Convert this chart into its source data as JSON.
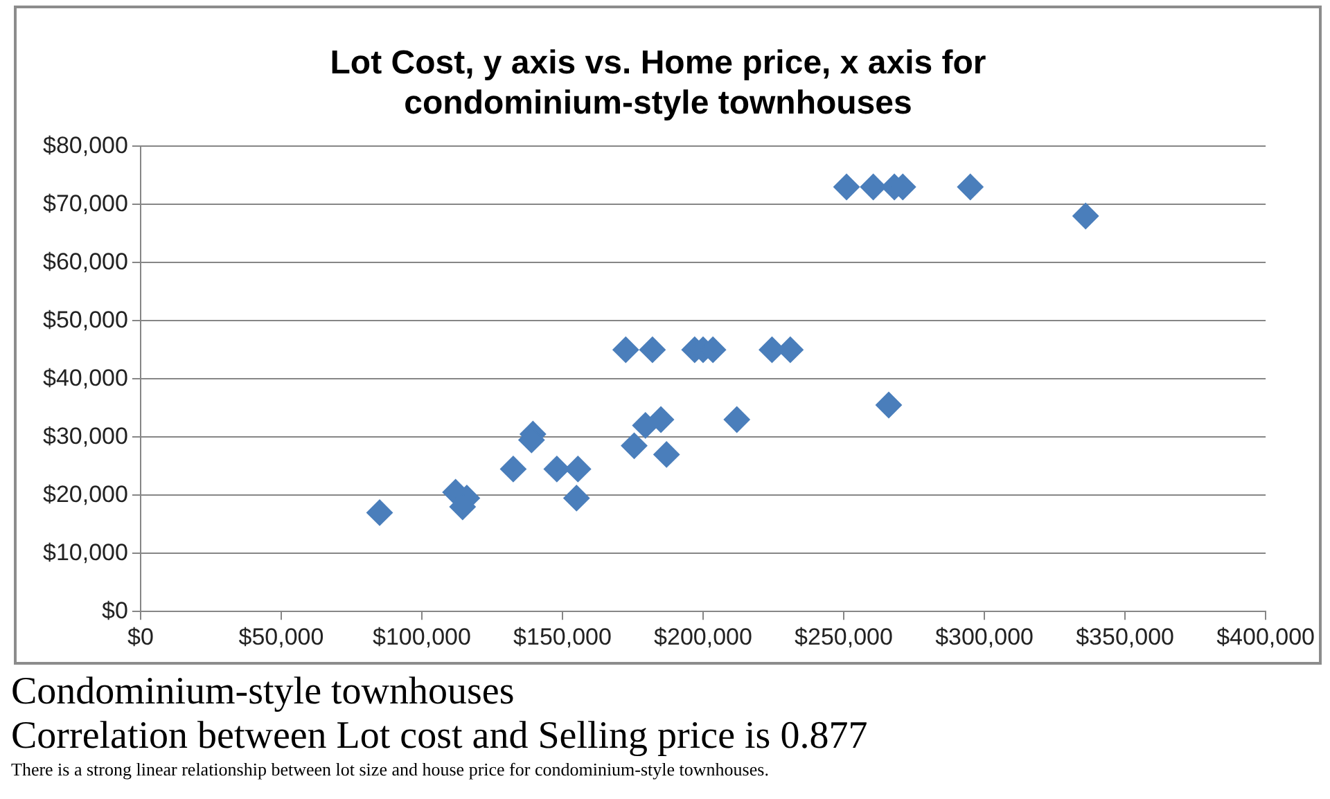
{
  "chart_data": {
    "type": "scatter",
    "title": "Lot Cost, y axis vs. Home price, x axis for\ncondominium-style townhouses",
    "x": [
      85000,
      112000,
      116000,
      114500,
      132500,
      139500,
      139000,
      148000,
      155500,
      155000,
      172500,
      182000,
      175500,
      179500,
      185000,
      187000,
      197000,
      200000,
      203500,
      212000,
      224500,
      231000,
      251000,
      260500,
      268000,
      271000,
      295000,
      336000,
      266000
    ],
    "values": [
      17000,
      20500,
      19500,
      18000,
      24500,
      30500,
      29500,
      24500,
      24500,
      19500,
      45000,
      45000,
      28500,
      32000,
      33000,
      27000,
      45000,
      45000,
      45000,
      33000,
      45000,
      45000,
      73000,
      73000,
      73000,
      73000,
      73000,
      68000,
      35500
    ],
    "color": "#4a7ebb",
    "marker": "diamond",
    "xlim": [
      0,
      400000
    ],
    "xticks": [
      {
        "value": 0,
        "label": "$0"
      },
      {
        "value": 50000,
        "label": "$50,000"
      },
      {
        "value": 100000,
        "label": "$100,000"
      },
      {
        "value": 150000,
        "label": "$150,000"
      },
      {
        "value": 200000,
        "label": "$200,000"
      },
      {
        "value": 250000,
        "label": "$250,000"
      },
      {
        "value": 300000,
        "label": "$300,000"
      },
      {
        "value": 350000,
        "label": "$350,000"
      },
      {
        "value": 400000,
        "label": "$400,000"
      }
    ],
    "ylim": [
      0,
      80000
    ],
    "yticks": [
      {
        "value": 0,
        "label": "$0"
      },
      {
        "value": 10000,
        "label": "$10,000"
      },
      {
        "value": 20000,
        "label": "$20,000"
      },
      {
        "value": 30000,
        "label": "$30,000"
      },
      {
        "value": 40000,
        "label": "$40,000"
      },
      {
        "value": 50000,
        "label": "$50,000"
      },
      {
        "value": 60000,
        "label": "$60,000"
      },
      {
        "value": 70000,
        "label": "$70,000"
      },
      {
        "value": 80000,
        "label": "$80,000"
      }
    ],
    "grid": "y",
    "annotations": [
      "Condominium-style townhouses",
      "Correlation between Lot cost and Selling price is 0.877",
      "There is a strong linear relationship between lot size and house price for condominium-style townhouses."
    ]
  }
}
